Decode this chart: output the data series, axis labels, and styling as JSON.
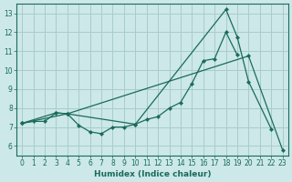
{
  "xlabel": "Humidex (Indice chaleur)",
  "background_color": "#cce8e8",
  "grid_color": "#aacccc",
  "line_color": "#1a6b5a",
  "x_ticks": [
    0,
    1,
    2,
    3,
    4,
    5,
    6,
    7,
    8,
    9,
    10,
    11,
    12,
    13,
    14,
    15,
    16,
    17,
    18,
    19,
    20,
    21,
    22,
    23
  ],
  "y_ticks": [
    6,
    7,
    8,
    9,
    10,
    11,
    12,
    13
  ],
  "ylim": [
    5.5,
    13.5
  ],
  "xlim": [
    -0.5,
    23.5
  ],
  "series": [
    {
      "x": [
        0,
        1,
        2,
        3,
        4,
        5,
        6,
        7,
        8,
        9,
        10,
        11,
        12,
        13,
        14,
        15,
        16,
        17,
        18,
        19
      ],
      "y": [
        7.2,
        7.3,
        7.3,
        7.75,
        7.7,
        7.1,
        6.75,
        6.65,
        7.0,
        7.0,
        7.15,
        7.4,
        7.55,
        8.0,
        8.3,
        9.3,
        10.5,
        10.6,
        12.0,
        10.8
      ]
    },
    {
      "comment": "upper peak line: 0,3,4,10,18,19,20,22",
      "x": [
        0,
        3,
        4,
        10,
        18,
        19,
        20,
        22
      ],
      "y": [
        7.2,
        7.75,
        7.7,
        7.15,
        13.2,
        11.75,
        9.4,
        6.9
      ]
    },
    {
      "comment": "straight diagonal: 0,4,20,23",
      "x": [
        0,
        4,
        20,
        23
      ],
      "y": [
        7.2,
        7.7,
        10.75,
        5.8
      ]
    }
  ]
}
